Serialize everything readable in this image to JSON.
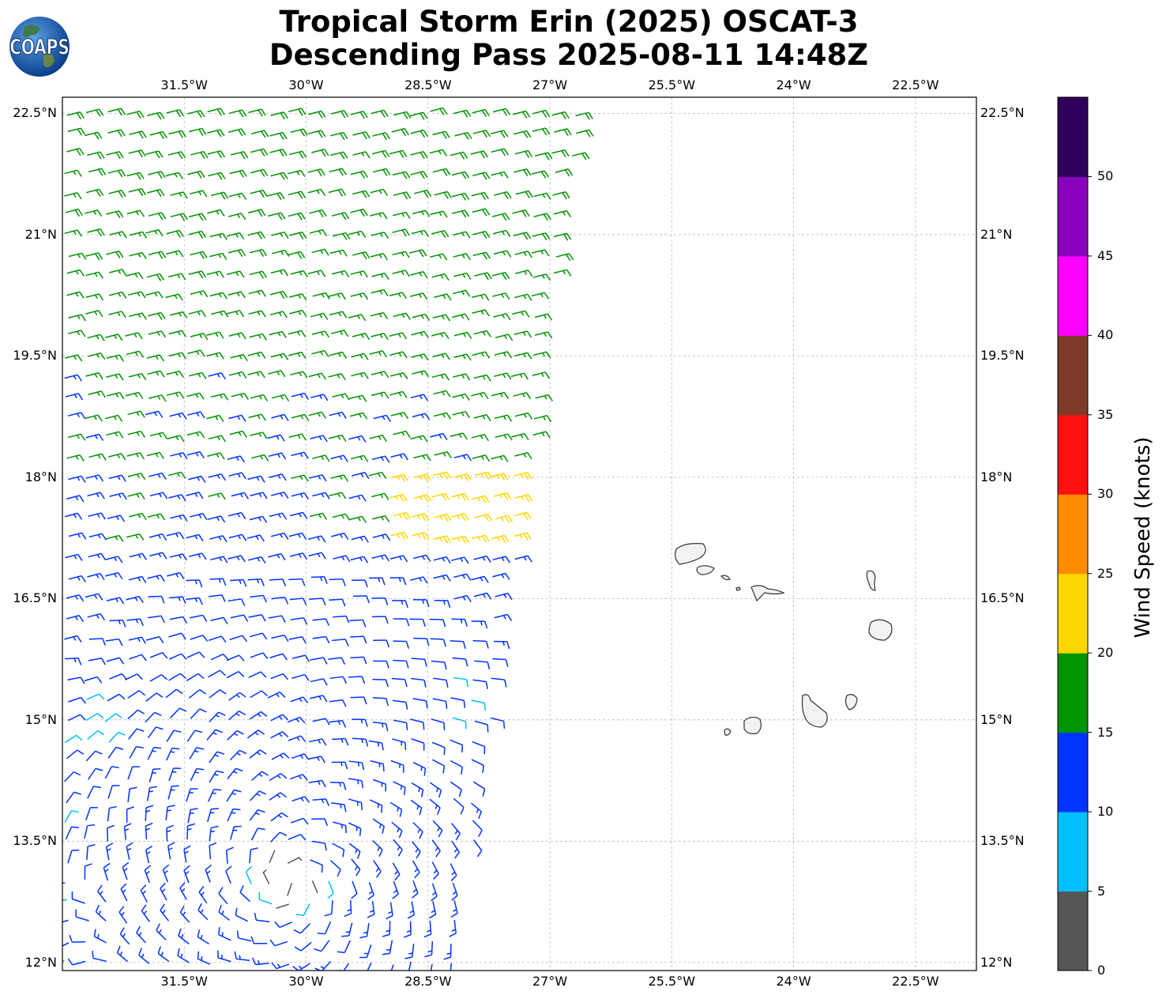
{
  "title_line1": "Tropical Storm Erin (2025) OSCAT-3",
  "title_line2": "Descending Pass 2025-08-11 14:48Z",
  "logo": {
    "text": "COAPS",
    "icon": "globe-icon"
  },
  "map": {
    "lon_range": [
      -33.0,
      -21.75
    ],
    "lat_range": [
      11.9,
      22.7
    ],
    "lon_ticks": [
      "31.5°W",
      "30°W",
      "28.5°W",
      "27°W",
      "25.5°W",
      "24°W",
      "22.5°W"
    ],
    "lon_values": [
      -31.5,
      -30.0,
      -28.5,
      -27.0,
      -25.5,
      -24.0,
      -22.5
    ],
    "lat_ticks": [
      "22.5°N",
      "21°N",
      "19.5°N",
      "18°N",
      "16.5°N",
      "15°N",
      "13.5°N",
      "12°N"
    ],
    "lat_values": [
      22.5,
      21.0,
      19.5,
      18.0,
      16.5,
      15.0,
      13.5,
      12.0
    ],
    "gridlines": true,
    "land_feature": "Cape Verde islands"
  },
  "colorbar": {
    "title": "Wind Speed (knots)",
    "labels": [
      "0",
      "5",
      "10",
      "15",
      "20",
      "25",
      "30",
      "35",
      "40",
      "45",
      "50"
    ],
    "colors": [
      "#555555",
      "#00bfff",
      "#0033ff",
      "#009400",
      "#ffd700",
      "#ff8c00",
      "#ff1010",
      "#803a28",
      "#ff00ff",
      "#8800bb",
      "#2e005c"
    ]
  },
  "center": {
    "lon": -30.2,
    "lat": 13.0
  }
}
